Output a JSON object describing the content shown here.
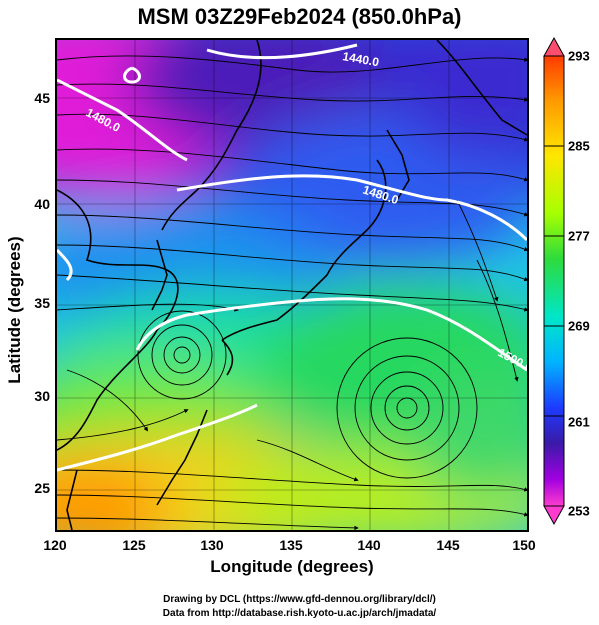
{
  "title": "MSM 03Z29Feb2024 (850.0hPa)",
  "x_axis": {
    "label": "Longitude (degrees)",
    "ticks": [
      "120",
      "125",
      "130",
      "135",
      "140",
      "145",
      "150"
    ]
  },
  "y_axis": {
    "label": "Latitude  (degrees)",
    "ticks": [
      "45",
      "40",
      "35",
      "30",
      "25"
    ]
  },
  "colorbar": {
    "ticks": [
      "293",
      "285",
      "277",
      "269",
      "261",
      "253"
    ],
    "stops": [
      "#ff4d6d",
      "#ff3b00",
      "#ff9a00",
      "#ffe600",
      "#a6ff00",
      "#2edb3c",
      "#00e6c8",
      "#00b4ff",
      "#1c3cff",
      "#3a1aa8",
      "#a000e0",
      "#ff3ccf"
    ]
  },
  "contours": {
    "label_1440": "1440.0",
    "label_1480_a": "1480.0",
    "label_1480_b": "1480.0",
    "label_1500": "1500.0"
  },
  "credits": {
    "line1": "Drawing by DCL (https://www.gfd-dennou.org/library/dcl/)",
    "line2": "Data from http://database.rish.kyoto-u.ac.jp/arch/jmadata/"
  },
  "map_extent": {
    "lon": [
      120,
      150
    ],
    "lat": [
      22.5,
      48
    ]
  }
}
